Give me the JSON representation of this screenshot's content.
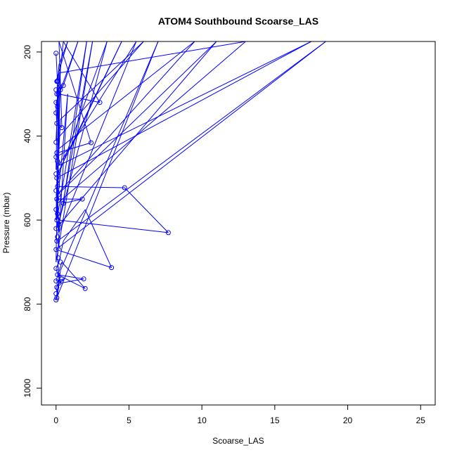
{
  "chart_data": {
    "type": "line",
    "title": "ATOM4 Southbound Scoarse_LAS",
    "xlabel": "Scoarse_LAS",
    "ylabel": "Pressure (mbar)",
    "xlim": [
      -1.0,
      26.0
    ],
    "ylim": [
      1040,
      175
    ],
    "y_reversed": true,
    "x_ticks": [
      "0",
      "5",
      "10",
      "15",
      "20",
      "25"
    ],
    "y_ticks": [
      "200",
      "400",
      "600",
      "800",
      "1000"
    ],
    "series_color": "#0000ff",
    "marker": "open-circle",
    "points": [
      [
        0,
        203
      ],
      [
        0.1,
        270
      ],
      [
        0.05,
        300
      ],
      [
        0.2,
        230
      ],
      [
        0.8,
        175
      ],
      [
        0,
        270
      ],
      [
        0.3,
        290
      ],
      [
        0.5,
        280
      ],
      [
        1.5,
        175
      ],
      [
        0,
        320
      ],
      [
        0.1,
        330
      ],
      [
        0.2,
        300
      ],
      [
        3.0,
        320
      ],
      [
        0.5,
        175
      ],
      [
        0,
        340
      ],
      [
        0.05,
        370
      ],
      [
        0.4,
        380
      ],
      [
        0.2,
        175
      ],
      [
        2.4,
        416
      ],
      [
        0.1,
        440
      ],
      [
        0,
        450
      ],
      [
        1.0,
        430
      ],
      [
        4.5,
        175
      ],
      [
        0.1,
        490
      ],
      [
        0,
        460
      ],
      [
        0.3,
        500
      ],
      [
        0.05,
        520
      ],
      [
        4.7,
        523
      ],
      [
        7.7,
        630
      ],
      [
        0.2,
        600
      ],
      [
        0.1,
        580
      ],
      [
        0,
        550
      ],
      [
        1.8,
        550
      ],
      [
        0.5,
        560
      ],
      [
        2.1,
        175
      ],
      [
        0.4,
        530
      ],
      [
        0.05,
        600
      ],
      [
        0.2,
        620
      ],
      [
        0,
        640
      ],
      [
        0.3,
        670
      ],
      [
        0.1,
        650
      ],
      [
        18.5,
        175
      ],
      [
        0,
        670
      ],
      [
        3.8,
        713
      ],
      [
        2.0,
        575
      ],
      [
        0.5,
        650
      ],
      [
        0.2,
        700
      ],
      [
        0,
        715
      ],
      [
        0.3,
        750
      ],
      [
        1.9,
        740
      ],
      [
        0.1,
        730
      ],
      [
        2.0,
        763
      ],
      [
        0.4,
        700
      ],
      [
        0,
        745
      ],
      [
        0.5,
        740
      ],
      [
        0,
        760
      ],
      [
        0.1,
        780
      ],
      [
        0.3,
        720
      ],
      [
        7.0,
        175
      ],
      [
        0,
        790
      ],
      [
        0.2,
        740
      ],
      [
        0.1,
        690
      ],
      [
        0.8,
        300
      ],
      [
        0,
        600
      ],
      [
        0.2,
        250
      ],
      [
        13.0,
        175
      ],
      [
        0.1,
        560
      ],
      [
        0.3,
        230
      ],
      [
        0.05,
        500
      ],
      [
        17.5,
        175
      ],
      [
        0.2,
        470
      ],
      [
        0.1,
        330
      ],
      [
        0,
        410
      ],
      [
        6.0,
        175
      ],
      [
        0.3,
        360
      ],
      [
        0.05,
        540
      ],
      [
        9.5,
        175
      ],
      [
        0.2,
        430
      ],
      [
        0.1,
        280
      ],
      [
        0,
        480
      ],
      [
        5.5,
        175
      ],
      [
        0.2,
        630
      ],
      [
        0.1,
        540
      ],
      [
        11.0,
        175
      ],
      [
        0,
        620
      ],
      [
        0.3,
        590
      ],
      [
        3.5,
        175
      ],
      [
        0.1,
        500
      ],
      [
        0,
        700
      ],
      [
        2.5,
        175
      ],
      [
        0.2,
        610
      ],
      [
        0.05,
        575
      ]
    ],
    "markers": [
      [
        0,
        203
      ],
      [
        0.05,
        270
      ],
      [
        0.1,
        270
      ],
      [
        0,
        290
      ],
      [
        0.05,
        300
      ],
      [
        0,
        320
      ],
      [
        0.1,
        330
      ],
      [
        0,
        345
      ],
      [
        0.5,
        280
      ],
      [
        0.3,
        290
      ],
      [
        0.15,
        300
      ],
      [
        3.0,
        320
      ],
      [
        0.05,
        370
      ],
      [
        0.4,
        380
      ],
      [
        0,
        415
      ],
      [
        2.4,
        416
      ],
      [
        0.05,
        440
      ],
      [
        0,
        450
      ],
      [
        0.1,
        460
      ],
      [
        0,
        490
      ],
      [
        0.05,
        500
      ],
      [
        0.1,
        520
      ],
      [
        4.7,
        523
      ],
      [
        0,
        530
      ],
      [
        0.15,
        540
      ],
      [
        0.05,
        550
      ],
      [
        1.8,
        550
      ],
      [
        0.5,
        560
      ],
      [
        0,
        575
      ],
      [
        0.1,
        585
      ],
      [
        0.05,
        600
      ],
      [
        0.2,
        610
      ],
      [
        0,
        620
      ],
      [
        7.7,
        630
      ],
      [
        0.1,
        640
      ],
      [
        0.05,
        650
      ],
      [
        0,
        670
      ],
      [
        0.15,
        690
      ],
      [
        0.3,
        700
      ],
      [
        3.8,
        713
      ],
      [
        0,
        715
      ],
      [
        0.1,
        730
      ],
      [
        1.9,
        740
      ],
      [
        0.4,
        740
      ],
      [
        0,
        745
      ],
      [
        0.2,
        750
      ],
      [
        0.05,
        760
      ],
      [
        2.0,
        763
      ],
      [
        0,
        775
      ],
      [
        0.05,
        785
      ],
      [
        0,
        790
      ]
    ]
  }
}
